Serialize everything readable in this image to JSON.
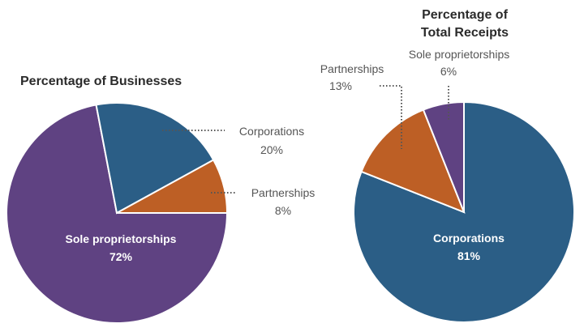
{
  "chart_data": [
    {
      "type": "pie",
      "title": "Percentage of Businesses",
      "slices": [
        {
          "label": "Sole proprietorships",
          "value": 72,
          "display": "72%",
          "color": "#5f4282"
        },
        {
          "label": "Corporations",
          "value": 20,
          "display": "20%",
          "color": "#2b5e86"
        },
        {
          "label": "Partnerships",
          "value": 8,
          "display": "8%",
          "color": "#bd5f25"
        }
      ]
    },
    {
      "type": "pie",
      "title_lines": [
        "Percentage of",
        "Total Receipts"
      ],
      "slices": [
        {
          "label": "Corporations",
          "value": 81,
          "display": "81%",
          "color": "#2b5e86"
        },
        {
          "label": "Partnerships",
          "value": 13,
          "display": "13%",
          "color": "#bd5f25"
        },
        {
          "label": "Sole proprietorships",
          "value": 6,
          "display": "6%",
          "color": "#5f4282"
        }
      ]
    }
  ]
}
